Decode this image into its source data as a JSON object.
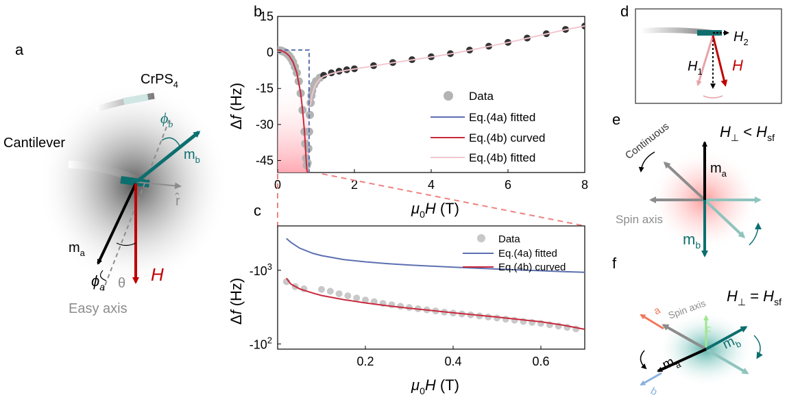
{
  "colors": {
    "teal": "#0d6e6e",
    "red": "#c00000",
    "blue_line": "#5b6fb0",
    "red_line": "#c8283c",
    "pink_line": "#f2c6ce",
    "data_gray": "#b3b3b3",
    "dark_data": "#333333",
    "gray_arrow": "#8c8c8c",
    "light_teal": "#8fc4bd",
    "orange": "#f07858",
    "light_blue": "#8ab0e0",
    "green": "#9fe68f"
  },
  "panel_labels": {
    "a": "a",
    "b": "b",
    "c": "c",
    "d": "d",
    "e": "e",
    "f": "f"
  },
  "panel_a": {
    "crps4_base": "CrPS",
    "crps4_sub": "4",
    "cantilever": "Cantilever",
    "phi_b": "ϕ",
    "phi_b_sub": "b",
    "m_b": "m",
    "m_b_sub": "b",
    "r_hat": "r̂",
    "m_a": "m",
    "m_a_sub": "a",
    "phi_a": "ϕ",
    "phi_a_sub": "a",
    "theta": "θ",
    "H": "H",
    "easy_axis": "Easy axis"
  },
  "panel_d": {
    "H2": "H",
    "H2_sub": "2",
    "H1": "H",
    "H1_sub": "1",
    "H": "H"
  },
  "panel_e": {
    "title_H": "H",
    "title_perp": "⊥",
    "title_lt": " < ",
    "title_H2": "H",
    "title_sf": "sf",
    "continuous": "Continuous",
    "m_a": "m",
    "m_a_sub": "a",
    "spin_axis": "Spin axis",
    "m_b": "m",
    "m_b_sub": "b"
  },
  "panel_f": {
    "title_H": "H",
    "title_perp": "⊥",
    "title_eq": " = ",
    "title_H2": "H",
    "title_sf": "sf",
    "a": "a",
    "spin_axis": "Spin axis",
    "c": "c",
    "m_a": "m",
    "m_a_sub": "a",
    "m_b": "m",
    "m_b_sub": "b",
    "b": "b"
  },
  "chart_data": [
    {
      "panel": "b",
      "type": "line",
      "xlabel_mu": "μ",
      "xlabel_sub": "0",
      "xlabel_rest": "H (T)",
      "ylabel_delta": "Δ",
      "ylabel_f": "f",
      "ylabel_rest": " (Hz)",
      "xlim": [
        0,
        8
      ],
      "ylim": [
        -50,
        15
      ],
      "xticks": [
        "0",
        "2",
        "4",
        "6",
        "8"
      ],
      "xtick_values": [
        0,
        2,
        4,
        6,
        8
      ],
      "yticks": [
        "15",
        "0",
        "-15",
        "-30",
        "-45"
      ],
      "ytick_values": [
        15,
        0,
        -15,
        -30,
        -45
      ],
      "legend": [
        "Data",
        "Eq.(4a) fitted",
        "Eq.(4b) curved",
        "Eq.(4b) fitted"
      ],
      "series": [
        {
          "name": "Data",
          "style": "markers",
          "x": [
            0,
            0.05,
            0.1,
            0.15,
            0.2,
            0.25,
            0.3,
            0.35,
            0.4,
            0.45,
            0.5,
            0.55,
            0.6,
            0.65,
            0.7,
            0.72,
            0.74,
            0.76,
            0.78,
            0.8,
            0.82,
            0.84,
            0.86,
            0.88,
            0.9,
            0.95,
            1.0,
            1.1,
            1.2,
            1.4,
            1.6,
            1.8,
            2.0,
            2.5,
            3.0,
            3.5,
            4.0,
            4.5,
            5.0,
            5.5,
            6.0,
            6.5,
            7.0,
            7.5,
            8.0
          ],
          "y": [
            1,
            0.9,
            0.7,
            0.4,
            0,
            -0.6,
            -1.4,
            -2.5,
            -4,
            -6,
            -8.5,
            -12,
            -17,
            -24,
            -33,
            -38,
            -44,
            -47,
            -46,
            -40,
            -33,
            -26,
            -21,
            -18,
            -16,
            -13.5,
            -12,
            -10.5,
            -9.5,
            -8.5,
            -7.8,
            -7.2,
            -6.8,
            -5.5,
            -4.2,
            -3,
            -1.8,
            -0.5,
            1,
            2.6,
            4.2,
            6,
            7.8,
            9.6,
            11
          ]
        },
        {
          "name": "Eq.(4a) fitted",
          "style": "step",
          "x": [
            0,
            0.82,
            0.82
          ],
          "y": [
            1,
            1,
            -50
          ]
        },
        {
          "name": "Eq.(4b) curved",
          "x": [
            0,
            0.1,
            0.2,
            0.3,
            0.4,
            0.5,
            0.6,
            0.65,
            0.7,
            0.72,
            0.74,
            0.76,
            0.78
          ],
          "y": [
            1,
            0.7,
            0,
            -1.4,
            -4,
            -8.5,
            -17,
            -24,
            -33,
            -38,
            -44,
            -49,
            -50
          ]
        },
        {
          "name": "Eq.(4b) fitted",
          "x": [
            0.85,
            0.9,
            0.95,
            1.0,
            1.1,
            1.2,
            1.4,
            1.6,
            1.8,
            2.0,
            2.5,
            3.0,
            3.5,
            4.0,
            4.5,
            5.0,
            5.5,
            6.0,
            6.5,
            7.0,
            7.5,
            8.0
          ],
          "y": [
            -22,
            -17.5,
            -15,
            -13,
            -11,
            -10,
            -8.8,
            -8,
            -7.4,
            -6.9,
            -5.6,
            -4.3,
            -3.1,
            -1.9,
            -0.6,
            0.9,
            2.5,
            4.1,
            5.9,
            7.7,
            9.5,
            11
          ]
        }
      ]
    },
    {
      "panel": "c",
      "type": "line",
      "xlabel_mu": "μ",
      "xlabel_sub": "0",
      "xlabel_rest": "H (T)",
      "ylabel_delta": "Δ",
      "ylabel_f": "f",
      "ylabel_rest": " (Hz)",
      "xlim": [
        0,
        0.7
      ],
      "xticks": [
        "0.2",
        "0.4",
        "0.6"
      ],
      "xtick_values": [
        0.2,
        0.4,
        0.6
      ],
      "yticks": [
        {
          "base": "-10",
          "exp": "3",
          "value": 1000
        },
        {
          "base": "-10",
          "exp": "2",
          "value": 100
        }
      ],
      "yscale": "log-magnitude",
      "ylim": [
        4000,
        85
      ],
      "legend": [
        "Data",
        "Eq.(4a) fitted",
        "Eq.(4b) curved"
      ],
      "series": [
        {
          "name": "Data",
          "style": "markers",
          "x": [
            0.02,
            0.04,
            0.06,
            0.1,
            0.12,
            0.14,
            0.16,
            0.18,
            0.2,
            0.22,
            0.24,
            0.26,
            0.28,
            0.3,
            0.32,
            0.34,
            0.36,
            0.38,
            0.4,
            0.42,
            0.44,
            0.46,
            0.48,
            0.5,
            0.52,
            0.54,
            0.56,
            0.58,
            0.6,
            0.62,
            0.64,
            0.66,
            0.68
          ],
          "y": [
            700,
            600,
            560,
            550,
            520,
            480,
            450,
            420,
            395,
            375,
            355,
            340,
            325,
            312,
            300,
            290,
            280,
            270,
            262,
            255,
            248,
            240,
            232,
            225,
            217,
            210,
            202,
            196,
            190,
            182,
            175,
            168,
            160
          ]
        },
        {
          "name": "Eq.(4a) fitted",
          "x": [
            0.02,
            0.03,
            0.05,
            0.08,
            0.1,
            0.15,
            0.2,
            0.25,
            0.3,
            0.35,
            0.4,
            0.45,
            0.5,
            0.55,
            0.6,
            0.65,
            0.7
          ],
          "y": [
            2700,
            2400,
            2000,
            1700,
            1580,
            1400,
            1300,
            1230,
            1180,
            1140,
            1100,
            1070,
            1040,
            1010,
            985,
            960,
            940
          ]
        },
        {
          "name": "Eq.(4b) curved",
          "x": [
            0.02,
            0.03,
            0.05,
            0.08,
            0.1,
            0.15,
            0.2,
            0.25,
            0.3,
            0.35,
            0.4,
            0.45,
            0.5,
            0.55,
            0.6,
            0.65,
            0.7
          ],
          "y": [
            780,
            650,
            560,
            490,
            455,
            400,
            360,
            330,
            305,
            285,
            265,
            248,
            232,
            215,
            200,
            180,
            158
          ]
        }
      ]
    }
  ]
}
